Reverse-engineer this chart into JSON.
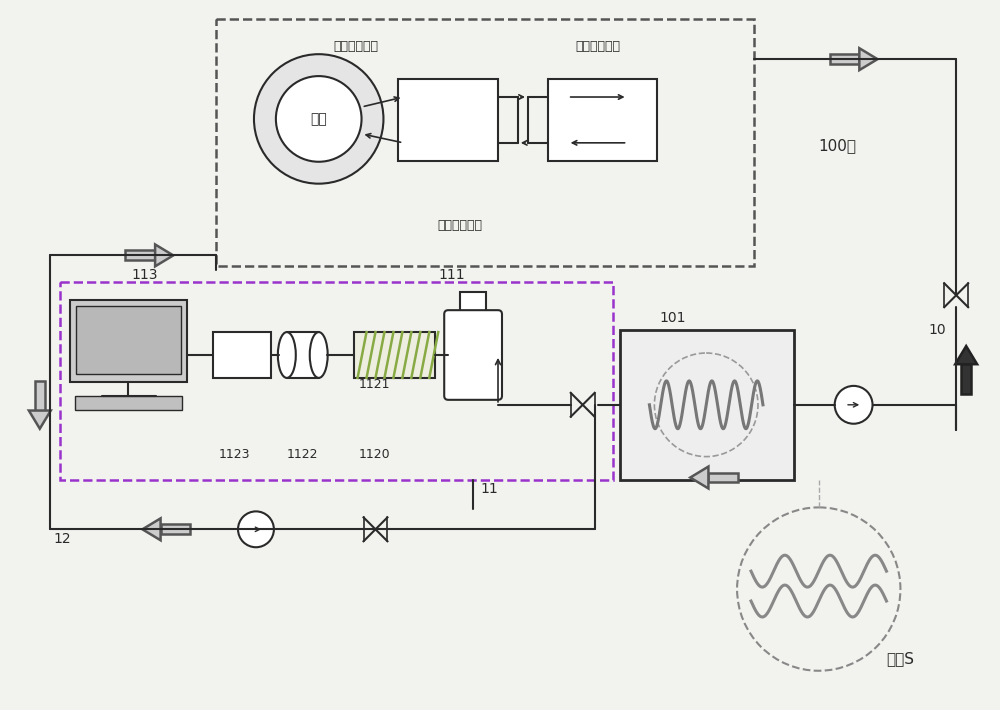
{
  "bg_color": "#f2f2ee",
  "lc": "#2a2a2a",
  "labels": {
    "heap_core": "堆芯",
    "first_coolant": "一回路冷却剂",
    "second_coolant": "二回路冷却剂",
    "third_coolant": "三回路冷却剂",
    "label_100": "100：",
    "label_10": "10",
    "label_11": "11",
    "label_12": "12",
    "label_101": "101",
    "label_111": "111",
    "label_113": "113",
    "label_1120": "1120",
    "label_1121": "1121",
    "label_1122": "1122",
    "label_1123": "1123",
    "label_bending_tube": "弯管S"
  }
}
